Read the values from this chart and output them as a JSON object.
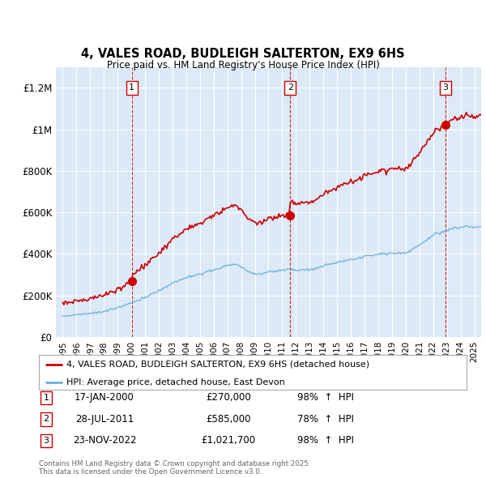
{
  "title": "4, VALES ROAD, BUDLEIGH SALTERTON, EX9 6HS",
  "subtitle": "Price paid vs. HM Land Registry's House Price Index (HPI)",
  "plot_bg_color": "#dce9f7",
  "transactions": [
    {
      "num": 1,
      "date_num": 2000.04,
      "price": 270000,
      "label": "17-JAN-2000",
      "pct": "98%",
      "dir": "↑"
    },
    {
      "num": 2,
      "date_num": 2011.58,
      "price": 585000,
      "label": "28-JUL-2011",
      "pct": "78%",
      "dir": "↑"
    },
    {
      "num": 3,
      "date_num": 2022.9,
      "price": 1021700,
      "label": "23-NOV-2022",
      "pct": "98%",
      "dir": "↑"
    }
  ],
  "legend_line1": "4, VALES ROAD, BUDLEIGH SALTERTON, EX9 6HS (detached house)",
  "legend_line2": "HPI: Average price, detached house, East Devon",
  "footer": "Contains HM Land Registry data © Crown copyright and database right 2025.\nThis data is licensed under the Open Government Licence v3.0.",
  "hpi_color": "#6baed6",
  "price_color": "#cc0000",
  "xlim": [
    1994.5,
    2025.5
  ],
  "ylim": [
    0,
    1300000
  ],
  "yticks": [
    0,
    200000,
    400000,
    600000,
    800000,
    1000000,
    1200000
  ],
  "ytick_labels": [
    "£0",
    "£200K",
    "£400K",
    "£600K",
    "£800K",
    "£1M",
    "£1.2M"
  ]
}
